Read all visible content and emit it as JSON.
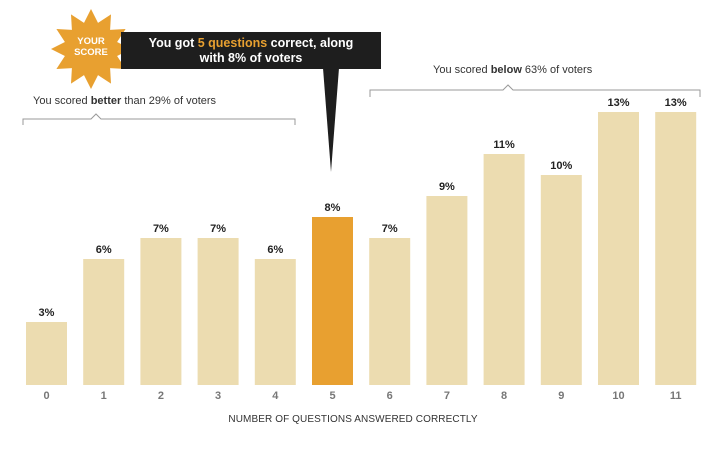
{
  "chart_data": {
    "type": "bar",
    "categories": [
      "0",
      "1",
      "2",
      "3",
      "4",
      "5",
      "6",
      "7",
      "8",
      "9",
      "10",
      "11"
    ],
    "values": [
      3,
      6,
      7,
      7,
      6,
      8,
      7,
      9,
      11,
      10,
      13,
      13
    ],
    "value_labels": [
      "3%",
      "6%",
      "7%",
      "7%",
      "6%",
      "8%",
      "7%",
      "9%",
      "11%",
      "10%",
      "13%",
      "13%"
    ],
    "highlight_index": 5,
    "xlabel": "NUMBER OF QUESTIONS ANSWERED CORRECTLY",
    "ylim": [
      0,
      13
    ],
    "grid": false,
    "colors": {
      "bar": "#ecdcb0",
      "highlight": "#e8a030",
      "callout_bg": "#1e1e1e",
      "burst": "#e8a030"
    }
  },
  "badge": {
    "line1": "YOUR",
    "line2": "SCORE"
  },
  "callout": {
    "prefix": "You got ",
    "highlight": "5 questions",
    "suffix": " correct, along",
    "line2": "with 8% of voters"
  },
  "bracket_left": {
    "prefix": "You scored ",
    "bold": "better",
    "suffix": " than 29% of voters"
  },
  "bracket_right": {
    "prefix": "You scored ",
    "bold": "below",
    "suffix": " 63% of voters"
  }
}
